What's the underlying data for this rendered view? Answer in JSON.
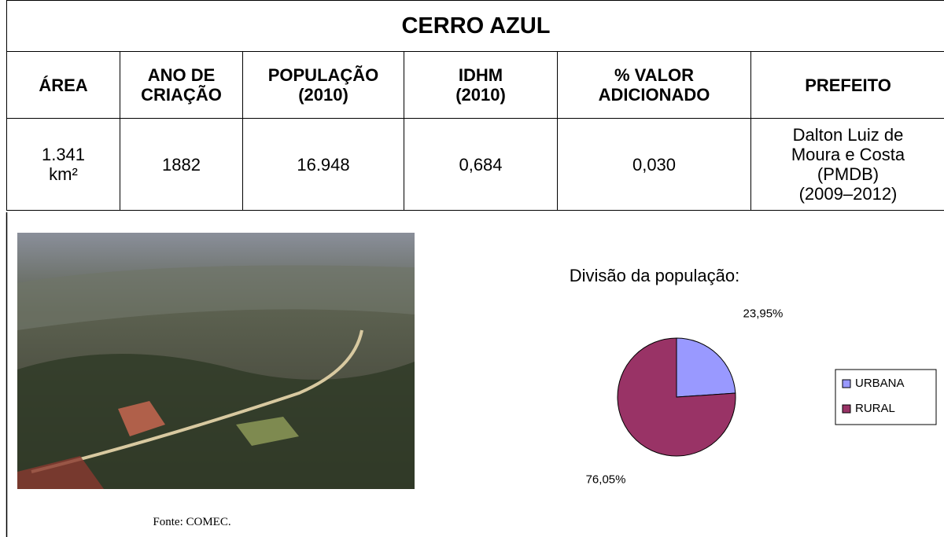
{
  "header": {
    "title": "CERRO AZUL"
  },
  "table": {
    "columns": [
      "ÁREA",
      "ANO DE\nCRIAÇÃO",
      "POPULAÇÃO\n(2010)",
      "IDHM\n(2010)",
      "% VALOR\nADICIONADO",
      "PREFEITO"
    ],
    "rows": [
      [
        "1.341\nkm²",
        "1882",
        "16.948",
        "0,684",
        "0,030",
        "Dalton Luiz de\nMoura e Costa\n(PMDB)\n(2009–2012)"
      ]
    ]
  },
  "photo": {
    "caption": "Fonte: COMEC."
  },
  "chart_data": {
    "type": "pie",
    "title": "Divisão da população:",
    "categories": [
      "URBANA",
      "RURAL"
    ],
    "values": [
      23.95,
      76.05
    ],
    "value_labels": [
      "23,95%",
      "76,05%"
    ],
    "colors": [
      "#9999ff",
      "#993366"
    ]
  }
}
